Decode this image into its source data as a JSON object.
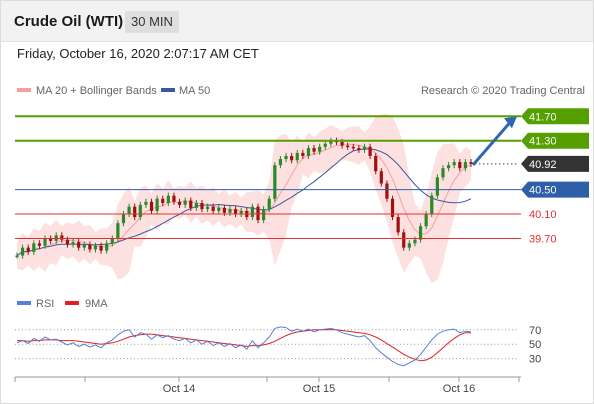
{
  "header": {
    "title": "Crude Oil (WTI)",
    "timeframe": "30 MIN"
  },
  "timestamp": "Friday, October 16, 2020 2:07:17 AM CET",
  "legend": {
    "ma20_bollinger": "MA 20 + Bollinger Bands",
    "ma50": "MA 50",
    "credit": "Research © 2020 Trading Central",
    "rsi": "RSI",
    "rsi_ma": "9MA"
  },
  "colors": {
    "resistance": "#55a000",
    "support": "#e23030",
    "pivot": "#2e5fa8",
    "current": "#333333",
    "bollinger_fill": "#fde0e0",
    "ma20": "#f4a0a0",
    "ma50": "#3a5a9c",
    "arrow": "#2e66b0",
    "candle_up": "#2a8a2a",
    "candle_down": "#a01010",
    "rsi": "#5b7fd6",
    "rsi_ma": "#e02020"
  },
  "levels": [
    {
      "label": "41.70",
      "value": 41.7,
      "kind": "resistance"
    },
    {
      "label": "41.30",
      "value": 41.3,
      "kind": "resistance"
    },
    {
      "label": "40.92",
      "value": 40.92,
      "kind": "current"
    },
    {
      "label": "40.50",
      "value": 40.5,
      "kind": "pivot"
    },
    {
      "label": "40.10",
      "value": 40.1,
      "kind": "support"
    },
    {
      "label": "39.70",
      "value": 39.7,
      "kind": "support"
    }
  ],
  "rsi_levels": [
    "70",
    "50",
    "30"
  ],
  "x_labels": [
    "Oct 14",
    "Oct 15",
    "Oct 16"
  ],
  "chart_data": {
    "type": "line",
    "price_series": [
      39.42,
      39.55,
      39.48,
      39.62,
      39.58,
      39.7,
      39.66,
      39.75,
      39.68,
      39.6,
      39.64,
      39.55,
      39.6,
      39.52,
      39.58,
      39.5,
      39.62,
      39.7,
      39.95,
      40.1,
      40.22,
      40.05,
      40.25,
      40.3,
      40.15,
      40.35,
      40.28,
      40.4,
      40.3,
      40.25,
      40.32,
      40.2,
      40.28,
      40.18,
      40.22,
      40.15,
      40.2,
      40.12,
      40.18,
      40.1,
      40.15,
      40.05,
      40.22,
      40.0,
      40.18,
      40.35,
      40.9,
      41.0,
      41.05,
      40.98,
      41.1,
      41.05,
      41.18,
      41.12,
      41.2,
      41.25,
      41.3,
      41.28,
      41.22,
      41.2,
      41.18,
      41.15,
      41.2,
      41.05,
      40.8,
      40.6,
      40.35,
      40.05,
      39.8,
      39.55,
      39.62,
      39.68,
      39.9,
      40.1,
      40.4,
      40.7,
      40.85,
      40.9,
      40.95,
      40.85,
      40.95,
      40.92
    ],
    "rsi_series": [
      52,
      55,
      51,
      58,
      54,
      60,
      56,
      57,
      53,
      49,
      52,
      47,
      50,
      46,
      49,
      45,
      52,
      56,
      63,
      68,
      70,
      60,
      66,
      64,
      57,
      63,
      59,
      62,
      57,
      55,
      58,
      52,
      56,
      50,
      54,
      48,
      52,
      47,
      51,
      45,
      49,
      43,
      55,
      45,
      52,
      60,
      72,
      74,
      73,
      68,
      71,
      68,
      71,
      67,
      70,
      71,
      72,
      70,
      66,
      64,
      62,
      60,
      62,
      55,
      45,
      38,
      32,
      26,
      22,
      20,
      24,
      28,
      36,
      46,
      56,
      64,
      68,
      70,
      71,
      66,
      68,
      67
    ],
    "rsi_ma_series": [
      55,
      55,
      54,
      55,
      55,
      56,
      56,
      56,
      55,
      55,
      55,
      54,
      53,
      52,
      51,
      50,
      51,
      52,
      54,
      57,
      60,
      62,
      63,
      64,
      64,
      63,
      62,
      61,
      60,
      59,
      58,
      57,
      56,
      55,
      54,
      53,
      52,
      51,
      50,
      49,
      48,
      47,
      48,
      48,
      49,
      51,
      54,
      58,
      62,
      65,
      67,
      68,
      69,
      70,
      70,
      70,
      70,
      70,
      69,
      68,
      67,
      66,
      65,
      63,
      60,
      56,
      51,
      46,
      41,
      36,
      32,
      29,
      27,
      28,
      32,
      38,
      45,
      52,
      58,
      63,
      66,
      66
    ],
    "ylim": [
      39.2,
      41.95
    ],
    "rsi_ylim": [
      10,
      85
    ]
  }
}
